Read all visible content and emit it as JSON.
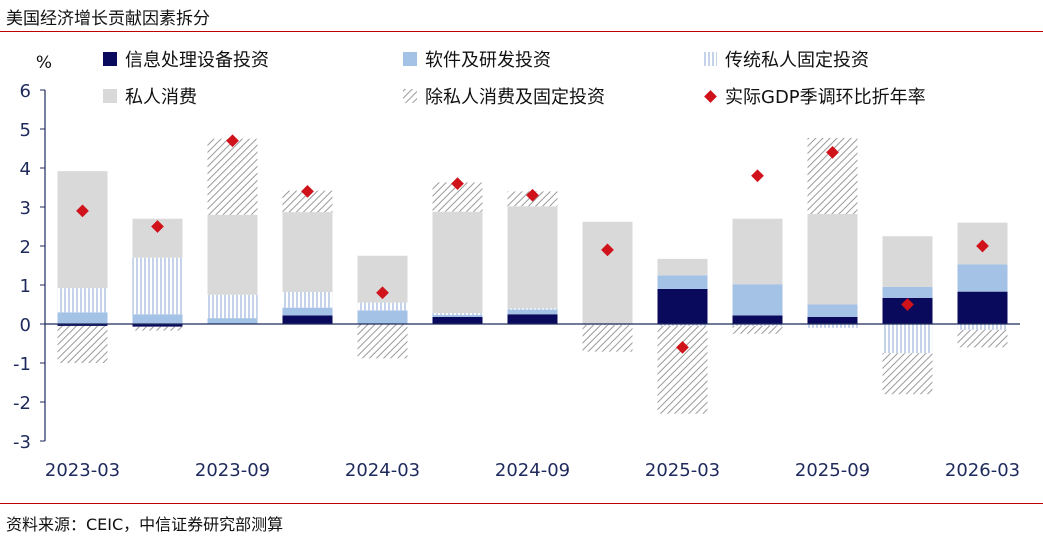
{
  "title": "美国经济增长贡献因素拆分",
  "source": "资料来源：CEIC，中信证券研究部测算",
  "colors": {
    "equipment": "#0a0a5c",
    "software": "#a4c2e6",
    "traditional": "#9fb6dc",
    "consumption": "#d9d9d9",
    "other": "#9a9a9a",
    "gdp": "#d0121b",
    "rule": "#c00000",
    "axis": "#1f2a5c"
  },
  "chart_data": {
    "type": "bar",
    "stacked": true,
    "title": "",
    "ylabel": "%",
    "xlabel": "",
    "ylim": [
      -3,
      6
    ],
    "yticks": [
      "-3",
      "-2",
      "-1",
      "0",
      "1",
      "2",
      "3",
      "4",
      "5",
      "6"
    ],
    "x_tick_labels": [
      "2023-03",
      "2023-09",
      "2024-03",
      "2024-09",
      "2025-03",
      "2025-09",
      "2026-03"
    ],
    "legend_position": "top",
    "categories": [
      "2023-03",
      "2023-06",
      "2023-09",
      "2023-12",
      "2024-03",
      "2024-06",
      "2024-09",
      "2024-12",
      "2025-03",
      "2025-06",
      "2025-09",
      "2025-12",
      "2026-03"
    ],
    "series": [
      {
        "name": "信息处理设备投资",
        "key": "equipment",
        "pattern": "solid",
        "values": [
          -0.05,
          -0.07,
          0.0,
          0.22,
          0.0,
          0.18,
          0.25,
          0.0,
          0.9,
          0.22,
          0.18,
          0.67,
          0.83
        ]
      },
      {
        "name": "软件及研发投资",
        "key": "software",
        "pattern": "solid",
        "values": [
          0.3,
          0.25,
          0.15,
          0.2,
          0.35,
          0.05,
          0.12,
          0.0,
          0.35,
          0.8,
          0.32,
          0.28,
          0.7
        ]
      },
      {
        "name": "传统私人固定投资",
        "key": "traditional",
        "pattern": "vertical-lines",
        "values": [
          0.62,
          1.45,
          0.6,
          0.4,
          0.2,
          0.05,
          0.03,
          -0.03,
          -0.05,
          -0.05,
          -0.1,
          -0.75,
          -0.15
        ]
      },
      {
        "name": "私人消费",
        "key": "consumption",
        "pattern": "solid",
        "values": [
          3.0,
          1.0,
          2.05,
          2.05,
          1.2,
          2.6,
          2.62,
          2.62,
          0.42,
          1.68,
          2.32,
          1.3,
          1.07
        ]
      },
      {
        "name": "除私人消费及固定投资",
        "key": "other",
        "pattern": "diagonal-hatch",
        "values": [
          -0.95,
          -0.1,
          1.95,
          0.55,
          -0.88,
          0.75,
          0.38,
          -0.68,
          -2.25,
          -0.2,
          1.95,
          -1.05,
          -0.45
        ]
      },
      {
        "name": "实际GDP季调环比折年率",
        "key": "gdp",
        "type": "marker",
        "values": [
          2.9,
          2.5,
          4.7,
          3.4,
          0.8,
          3.6,
          3.3,
          1.9,
          -0.6,
          3.8,
          4.4,
          0.5,
          2.0
        ]
      }
    ]
  }
}
